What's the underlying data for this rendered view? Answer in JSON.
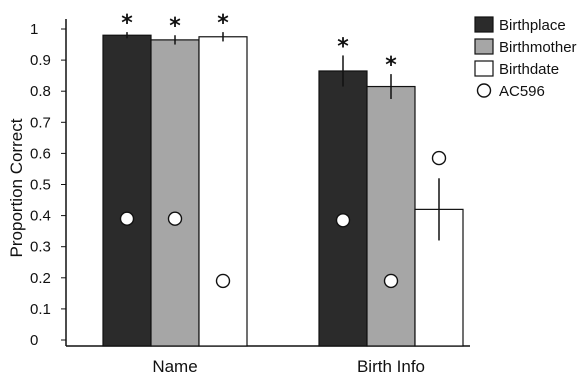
{
  "chart_data": {
    "type": "bar",
    "ylabel": "Proportion Correct",
    "ylim": [
      0,
      1
    ],
    "yticks": [
      0,
      0.1,
      0.2,
      0.3,
      0.4,
      0.5,
      0.6,
      0.7,
      0.8,
      0.9,
      1
    ],
    "ytick_labels": [
      "0",
      "0.1",
      "0.2",
      "0.3",
      "0.4",
      "0.5",
      "0.6",
      "0.7",
      "0.8",
      "0.9",
      "1"
    ],
    "categories": [
      "Name",
      "Birth Info"
    ],
    "series": [
      {
        "name": "Birthplace",
        "values": [
          0.98,
          0.865
        ],
        "errors": [
          0.01,
          0.05
        ],
        "color": "#2b2b2b",
        "significant": [
          true,
          true
        ]
      },
      {
        "name": "Birthmother",
        "values": [
          0.965,
          0.815
        ],
        "errors": [
          0.015,
          0.04
        ],
        "color": "#a6a6a6",
        "significant": [
          true,
          true
        ]
      },
      {
        "name": "Birthdate",
        "values": [
          0.975,
          0.42
        ],
        "errors": [
          0.015,
          0.1
        ],
        "color": "#ffffff",
        "significant": [
          true,
          false
        ]
      }
    ],
    "patient": {
      "name": "AC596",
      "values": [
        [
          0.39,
          0.39,
          0.19
        ],
        [
          0.385,
          0.19,
          0.585
        ]
      ]
    },
    "significance_marker": "*",
    "grid": false,
    "legend_position": "top-right"
  }
}
